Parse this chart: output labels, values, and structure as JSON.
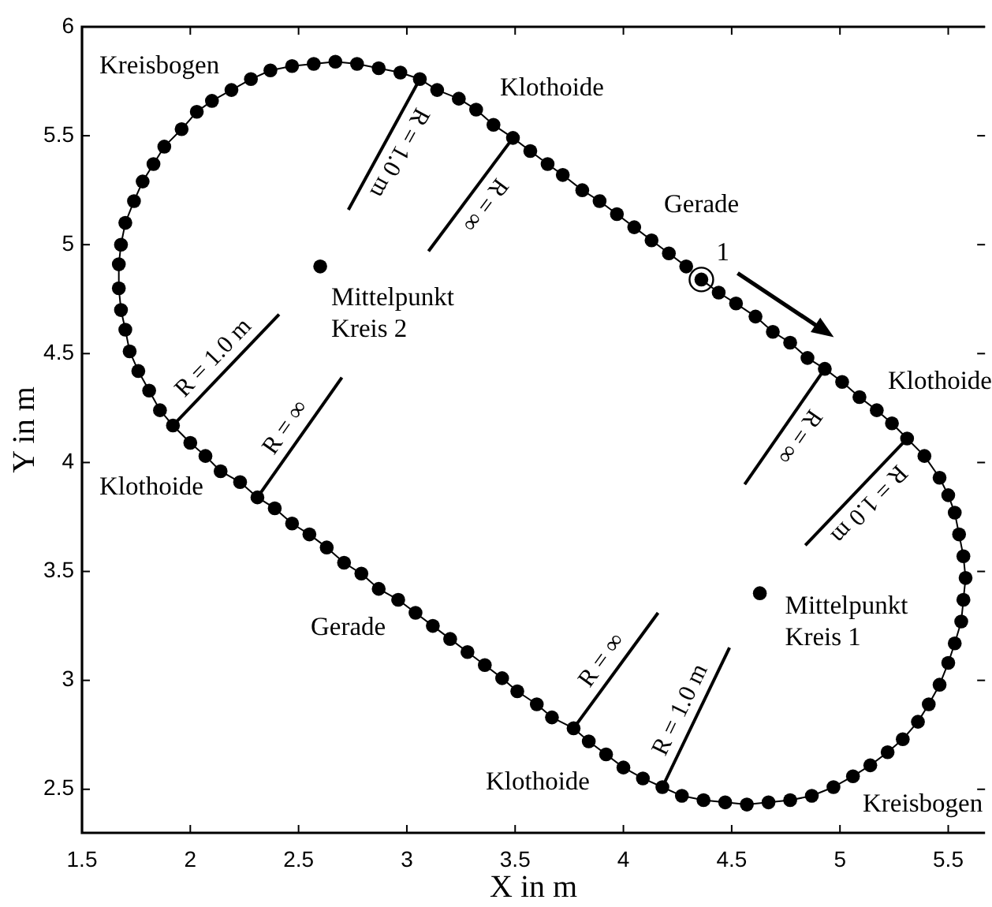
{
  "chart_data": {
    "type": "line",
    "xlabel": "X in m",
    "ylabel": "Y in m",
    "xlim": [
      1.5,
      5.67
    ],
    "ylim": [
      2.3,
      6
    ],
    "xticks": [
      1.5,
      2,
      2.5,
      3,
      3.5,
      4,
      4.5,
      5,
      5.5
    ],
    "yticks": [
      2.5,
      3,
      3.5,
      4,
      4.5,
      5,
      5.5,
      6
    ],
    "series": [
      {
        "marker": "circle",
        "color": "#000000",
        "x": [
          4.36,
          4.44,
          4.52,
          4.61,
          4.69,
          4.77,
          4.85,
          4.93,
          5.01,
          5.09,
          5.17,
          5.24,
          5.31,
          5.39,
          5.46,
          5.5,
          5.53,
          5.55,
          5.57,
          5.58,
          5.57,
          5.56,
          5.53,
          5.5,
          5.46,
          5.41,
          5.36,
          5.29,
          5.22,
          5.14,
          5.06,
          4.97,
          4.87,
          4.77,
          4.67,
          4.57,
          4.47,
          4.37,
          4.27,
          4.18,
          4.09,
          4.0,
          3.92,
          3.84,
          3.77,
          3.67,
          3.6,
          3.51,
          3.44,
          3.36,
          3.28,
          3.2,
          3.12,
          3.04,
          2.96,
          2.87,
          2.79,
          2.71,
          2.63,
          2.55,
          2.47,
          2.39,
          2.31,
          2.23,
          2.14,
          2.07,
          2.0,
          1.92,
          1.86,
          1.81,
          1.76,
          1.72,
          1.7,
          1.68,
          1.67,
          1.67,
          1.68,
          1.7,
          1.74,
          1.78,
          1.83,
          1.88,
          1.96,
          2.03,
          2.1,
          2.19,
          2.28,
          2.37,
          2.47,
          2.57,
          2.67,
          2.77,
          2.87,
          2.97,
          3.06,
          3.14,
          3.24,
          3.32,
          3.4,
          3.49,
          3.57,
          3.65,
          3.72,
          3.81,
          3.89,
          3.97,
          4.05,
          4.13,
          4.21,
          4.29
        ],
        "values": [
          4.84,
          4.78,
          4.73,
          4.67,
          4.6,
          4.55,
          4.48,
          4.43,
          4.37,
          4.3,
          4.24,
          4.18,
          4.11,
          4.03,
          3.93,
          3.85,
          3.77,
          3.67,
          3.57,
          3.47,
          3.37,
          3.27,
          3.17,
          3.08,
          2.98,
          2.89,
          2.81,
          2.73,
          2.67,
          2.61,
          2.56,
          2.51,
          2.47,
          2.45,
          2.44,
          2.43,
          2.44,
          2.45,
          2.47,
          2.51,
          2.55,
          2.6,
          2.66,
          2.72,
          2.78,
          2.83,
          2.89,
          2.95,
          3.01,
          3.07,
          3.13,
          3.19,
          3.25,
          3.31,
          3.37,
          3.42,
          3.49,
          3.54,
          3.61,
          3.67,
          3.72,
          3.79,
          3.84,
          3.91,
          3.96,
          4.03,
          4.09,
          4.17,
          4.24,
          4.33,
          4.42,
          4.51,
          4.61,
          4.7,
          4.8,
          4.91,
          5.0,
          5.1,
          5.2,
          5.29,
          5.37,
          5.45,
          5.53,
          5.61,
          5.66,
          5.71,
          5.76,
          5.8,
          5.82,
          5.83,
          5.84,
          5.83,
          5.81,
          5.79,
          5.76,
          5.71,
          5.67,
          5.62,
          5.55,
          5.49,
          5.43,
          5.37,
          5.32,
          5.25,
          5.2,
          5.14,
          5.08,
          5.02,
          4.96,
          4.9
        ]
      },
      {
        "type": "scatter",
        "marker": "circle",
        "color": "#000000",
        "x": [
          2.6,
          4.63
        ],
        "values": [
          4.9,
          3.4
        ]
      },
      {
        "type": "line",
        "marker": "none",
        "name": "R = 1.0 m",
        "color": "#000000",
        "x": [
          3.06,
          2.73
        ],
        "values": [
          5.76,
          5.16
        ]
      },
      {
        "type": "line",
        "marker": "none",
        "name": "R = ∞",
        "color": "#000000",
        "x": [
          3.49,
          3.1
        ],
        "values": [
          5.49,
          4.97
        ]
      },
      {
        "type": "line",
        "marker": "none",
        "name": "R = ∞",
        "color": "#000000",
        "x": [
          4.93,
          4.56
        ],
        "values": [
          4.43,
          3.9
        ]
      },
      {
        "type": "line",
        "marker": "none",
        "name": "R = 1.0 m",
        "color": "#000000",
        "x": [
          5.31,
          4.84
        ],
        "values": [
          4.11,
          3.62
        ]
      },
      {
        "type": "line",
        "marker": "none",
        "name": "R = ∞",
        "color": "#000000",
        "x": [
          3.77,
          4.16
        ],
        "values": [
          2.78,
          3.31
        ]
      },
      {
        "type": "line",
        "marker": "none",
        "name": "R = 1.0 m",
        "color": "#000000",
        "x": [
          4.18,
          4.49
        ],
        "values": [
          2.51,
          3.15
        ]
      },
      {
        "type": "line",
        "marker": "none",
        "name": "R = 1.0 m",
        "color": "#000000",
        "x": [
          1.92,
          2.41
        ],
        "values": [
          4.17,
          4.68
        ]
      },
      {
        "type": "line",
        "marker": "none",
        "name": "R = ∞",
        "color": "#000000",
        "x": [
          2.31,
          2.7
        ],
        "values": [
          3.84,
          4.39
        ]
      }
    ],
    "annotations": [
      "Kreisbogen",
      "Klothoide",
      "Gerade",
      {
        "text": "1",
        "x": 4.36,
        "y": 4.84
      },
      {
        "text": "Mittelpunkt\nKreis 2",
        "x": 2.6,
        "y": 4.9
      },
      "Klothoide",
      "Klothoide",
      {
        "text": "Mittelpunkt\nKreis 1",
        "x": 4.63,
        "y": 3.4
      },
      "Gerade",
      "Klothoide",
      "Kreisbogen"
    ]
  }
}
